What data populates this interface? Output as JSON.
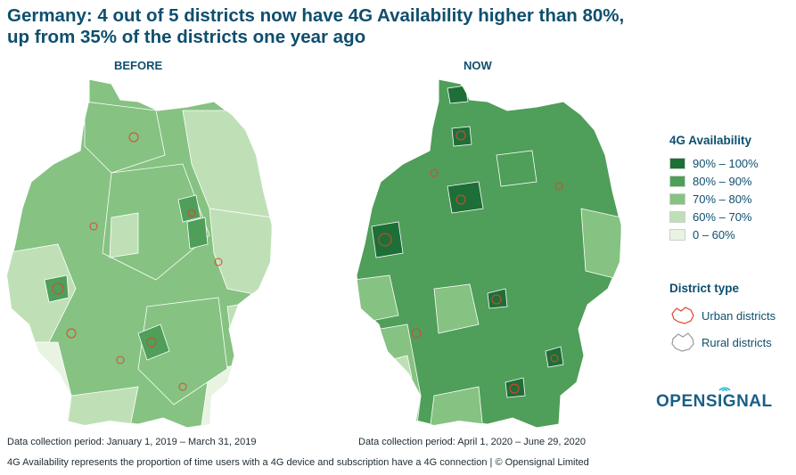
{
  "title": {
    "line1": "Germany: 4 out of 5 districts now have 4G Availability higher than 80%,",
    "line2": "up from 35% of the districts one year ago"
  },
  "maps": {
    "before": {
      "label": "BEFORE",
      "period": "Data collection period: January 1, 2019 – March 31, 2019",
      "dominant_class": "70% – 80%"
    },
    "now": {
      "label": "NOW",
      "period": "Data collection period: April 1, 2020 – June 29, 2020",
      "dominant_class": "80% – 90%"
    }
  },
  "legend": {
    "title": "4G Availability",
    "items": [
      {
        "label": "90% – 100%",
        "color": "#1e6e38"
      },
      {
        "label": "80% – 90%",
        "color": "#4f9e5a"
      },
      {
        "label": "70% – 80%",
        "color": "#86c282"
      },
      {
        "label": "60% – 70%",
        "color": "#bfe0b6"
      },
      {
        "label": "0 – 60%",
        "color": "#e8f3e2"
      }
    ]
  },
  "district_type": {
    "title": "District type",
    "items": [
      {
        "label": "Urban districts",
        "icon": "urban-district-outline-icon",
        "color": "#e0452e"
      },
      {
        "label": "Rural districts",
        "icon": "rural-district-outline-icon",
        "color": "#9a9a9a"
      }
    ]
  },
  "logo": {
    "text": "OPENSIGNAL"
  },
  "footnote": "4G Availability represents the proportion of time users with a 4G device and subscription have a 4G connection | © Opensignal Limited"
}
